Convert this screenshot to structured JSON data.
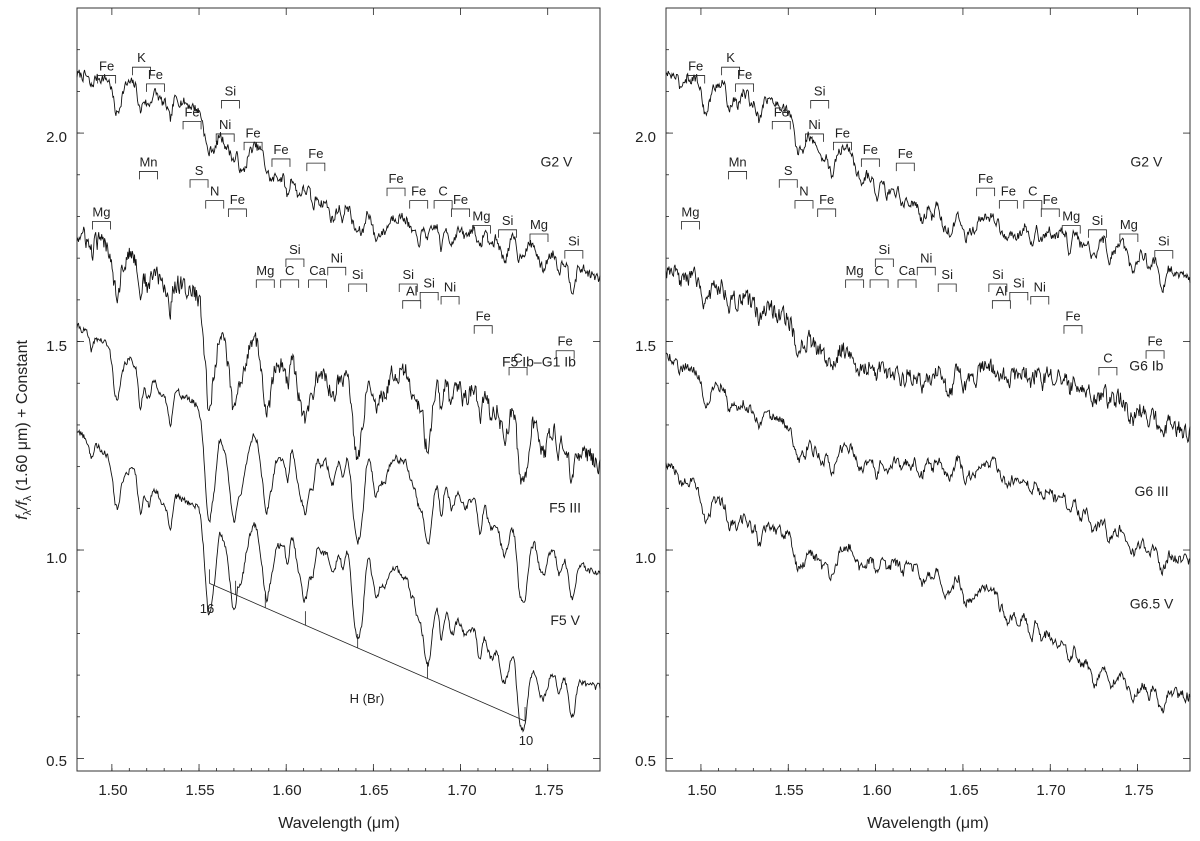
{
  "chart_data": [
    {
      "type": "line",
      "panel": "left",
      "xlabel": "Wavelength (μm)",
      "ylabel_parts": [
        "f",
        "λ",
        "/f",
        "λ",
        " (1.60 μm) + Constant"
      ],
      "xlim": [
        1.48,
        1.78
      ],
      "ylim": [
        0.47,
        2.3
      ],
      "xticks": [
        1.5,
        1.55,
        1.6,
        1.65,
        1.7,
        1.75
      ],
      "xtick_labels": [
        "1.50",
        "1.55",
        "1.60",
        "1.65",
        "1.70",
        "1.75"
      ],
      "yticks": [
        0.5,
        1.0,
        1.5,
        2.0
      ],
      "ytick_labels": [
        "0.5",
        "1.0",
        "1.5",
        "2.0"
      ],
      "series": [
        {
          "name": "G2  V",
          "start": 2.14,
          "end": 1.63,
          "noise": 0.012,
          "dip": 1.0,
          "label_x": 1.755,
          "label_y": 1.92
        },
        {
          "name": "F5 Ib–G1 Ib",
          "start": 1.72,
          "end": 1.23,
          "noise": 0.022,
          "dip": 1.3,
          "label_x": 1.745,
          "label_y": 1.44
        },
        {
          "name": "F5 III",
          "start": 1.5,
          "end": 0.98,
          "noise": 0.008,
          "dip": 1.5,
          "label_x": 1.76,
          "label_y": 1.09
        },
        {
          "name": "F5  V",
          "start": 1.28,
          "end": 0.69,
          "noise": 0.008,
          "dip": 1.4,
          "label_x": 1.76,
          "label_y": 0.82
        }
      ],
      "line_ids": [
        {
          "label": "Fe",
          "x": 1.497,
          "y": 2.15
        },
        {
          "label": "K",
          "x": 1.517,
          "y": 2.17
        },
        {
          "label": "Fe",
          "x": 1.525,
          "y": 2.13
        },
        {
          "label": "Si",
          "x": 1.568,
          "y": 2.09
        },
        {
          "label": "Fe",
          "x": 1.546,
          "y": 2.04
        },
        {
          "label": "Ni",
          "x": 1.565,
          "y": 2.01
        },
        {
          "label": "Fe",
          "x": 1.581,
          "y": 1.99
        },
        {
          "label": "Mn",
          "x": 1.521,
          "y": 1.92
        },
        {
          "label": "Fe",
          "x": 1.597,
          "y": 1.95
        },
        {
          "label": "Fe",
          "x": 1.617,
          "y": 1.94
        },
        {
          "label": "S",
          "x": 1.55,
          "y": 1.9
        },
        {
          "label": "Fe",
          "x": 1.663,
          "y": 1.88
        },
        {
          "label": "N",
          "x": 1.559,
          "y": 1.85
        },
        {
          "label": "Fe",
          "x": 1.572,
          "y": 1.83
        },
        {
          "label": "Fe",
          "x": 1.676,
          "y": 1.85
        },
        {
          "label": "C",
          "x": 1.69,
          "y": 1.85
        },
        {
          "label": "Fe",
          "x": 1.7,
          "y": 1.83
        },
        {
          "label": "Mg",
          "x": 1.494,
          "y": 1.8
        },
        {
          "label": "Mg",
          "x": 1.712,
          "y": 1.79
        },
        {
          "label": "Si",
          "x": 1.727,
          "y": 1.78
        },
        {
          "label": "Mg",
          "x": 1.745,
          "y": 1.77
        },
        {
          "label": "Si",
          "x": 1.605,
          "y": 1.71
        },
        {
          "label": "Si",
          "x": 1.765,
          "y": 1.73
        },
        {
          "label": "Ni",
          "x": 1.629,
          "y": 1.69
        },
        {
          "label": "Mg",
          "x": 1.588,
          "y": 1.66
        },
        {
          "label": "C",
          "x": 1.602,
          "y": 1.66
        },
        {
          "label": "Ca",
          "x": 1.618,
          "y": 1.66
        },
        {
          "label": "Si",
          "x": 1.641,
          "y": 1.65
        },
        {
          "label": "Si",
          "x": 1.67,
          "y": 1.65
        },
        {
          "label": "Si",
          "x": 1.682,
          "y": 1.63
        },
        {
          "label": "Ni",
          "x": 1.694,
          "y": 1.62
        },
        {
          "label": "Al",
          "x": 1.672,
          "y": 1.61
        },
        {
          "label": "Fe",
          "x": 1.713,
          "y": 1.55
        },
        {
          "label": "Fe",
          "x": 1.76,
          "y": 1.49
        },
        {
          "label": "C",
          "x": 1.733,
          "y": 1.45
        }
      ],
      "hydrogen_series": {
        "label": "H (Br)",
        "label_x": 1.64,
        "label_y": 0.66,
        "start_label": "16",
        "end_label": "10",
        "start_x": 1.556,
        "start_y": 0.92,
        "end_x": 1.737,
        "end_y": 0.59,
        "ticks": [
          1.556,
          1.571,
          1.588,
          1.611,
          1.641,
          1.681,
          1.737
        ]
      }
    },
    {
      "type": "line",
      "panel": "right",
      "xlabel": "Wavelength (μm)",
      "xlim": [
        1.48,
        1.78
      ],
      "ylim": [
        0.47,
        2.3
      ],
      "xticks": [
        1.5,
        1.55,
        1.6,
        1.65,
        1.7,
        1.75
      ],
      "xtick_labels": [
        "1.50",
        "1.55",
        "1.60",
        "1.65",
        "1.70",
        "1.75"
      ],
      "yticks": [
        0.5,
        1.0,
        1.5,
        2.0
      ],
      "ytick_labels": [
        "0.5",
        "1.0",
        "1.5",
        "2.0"
      ],
      "series": [
        {
          "name": "G2  V",
          "start": 2.14,
          "end": 1.63,
          "noise": 0.012,
          "dip": 1.0,
          "label_x": 1.755,
          "label_y": 1.92
        },
        {
          "name": "G6 Ib",
          "start": 1.63,
          "end": 1.3,
          "noise": 0.02,
          "dip": 0.7,
          "label_x": 1.755,
          "label_y": 1.43
        },
        {
          "name": "G6 III",
          "start": 1.43,
          "end": 1.01,
          "noise": 0.012,
          "dip": 0.8,
          "label_x": 1.758,
          "label_y": 1.13
        },
        {
          "name": "G6.5  V",
          "start": 1.2,
          "end": 0.67,
          "noise": 0.012,
          "dip": 0.9,
          "label_x": 1.758,
          "label_y": 0.86
        }
      ],
      "line_ids": [
        {
          "label": "Fe",
          "x": 1.497,
          "y": 2.15
        },
        {
          "label": "K",
          "x": 1.517,
          "y": 2.17
        },
        {
          "label": "Fe",
          "x": 1.525,
          "y": 2.13
        },
        {
          "label": "Si",
          "x": 1.568,
          "y": 2.09
        },
        {
          "label": "Fe",
          "x": 1.546,
          "y": 2.04
        },
        {
          "label": "Ni",
          "x": 1.565,
          "y": 2.01
        },
        {
          "label": "Fe",
          "x": 1.581,
          "y": 1.99
        },
        {
          "label": "Mn",
          "x": 1.521,
          "y": 1.92
        },
        {
          "label": "Fe",
          "x": 1.597,
          "y": 1.95
        },
        {
          "label": "Fe",
          "x": 1.617,
          "y": 1.94
        },
        {
          "label": "S",
          "x": 1.55,
          "y": 1.9
        },
        {
          "label": "Fe",
          "x": 1.663,
          "y": 1.88
        },
        {
          "label": "N",
          "x": 1.559,
          "y": 1.85
        },
        {
          "label": "Fe",
          "x": 1.572,
          "y": 1.83
        },
        {
          "label": "Fe",
          "x": 1.676,
          "y": 1.85
        },
        {
          "label": "C",
          "x": 1.69,
          "y": 1.85
        },
        {
          "label": "Fe",
          "x": 1.7,
          "y": 1.83
        },
        {
          "label": "Mg",
          "x": 1.494,
          "y": 1.8
        },
        {
          "label": "Mg",
          "x": 1.712,
          "y": 1.79
        },
        {
          "label": "Si",
          "x": 1.727,
          "y": 1.78
        },
        {
          "label": "Mg",
          "x": 1.745,
          "y": 1.77
        },
        {
          "label": "Si",
          "x": 1.605,
          "y": 1.71
        },
        {
          "label": "Si",
          "x": 1.765,
          "y": 1.73
        },
        {
          "label": "Ni",
          "x": 1.629,
          "y": 1.69
        },
        {
          "label": "Mg",
          "x": 1.588,
          "y": 1.66
        },
        {
          "label": "C",
          "x": 1.602,
          "y": 1.66
        },
        {
          "label": "Ca",
          "x": 1.618,
          "y": 1.66
        },
        {
          "label": "Si",
          "x": 1.641,
          "y": 1.65
        },
        {
          "label": "Si",
          "x": 1.67,
          "y": 1.65
        },
        {
          "label": "Si",
          "x": 1.682,
          "y": 1.63
        },
        {
          "label": "Ni",
          "x": 1.694,
          "y": 1.62
        },
        {
          "label": "Al",
          "x": 1.672,
          "y": 1.61
        },
        {
          "label": "Fe",
          "x": 1.713,
          "y": 1.55
        },
        {
          "label": "Fe",
          "x": 1.76,
          "y": 1.49
        },
        {
          "label": "C",
          "x": 1.733,
          "y": 1.45
        }
      ]
    }
  ]
}
